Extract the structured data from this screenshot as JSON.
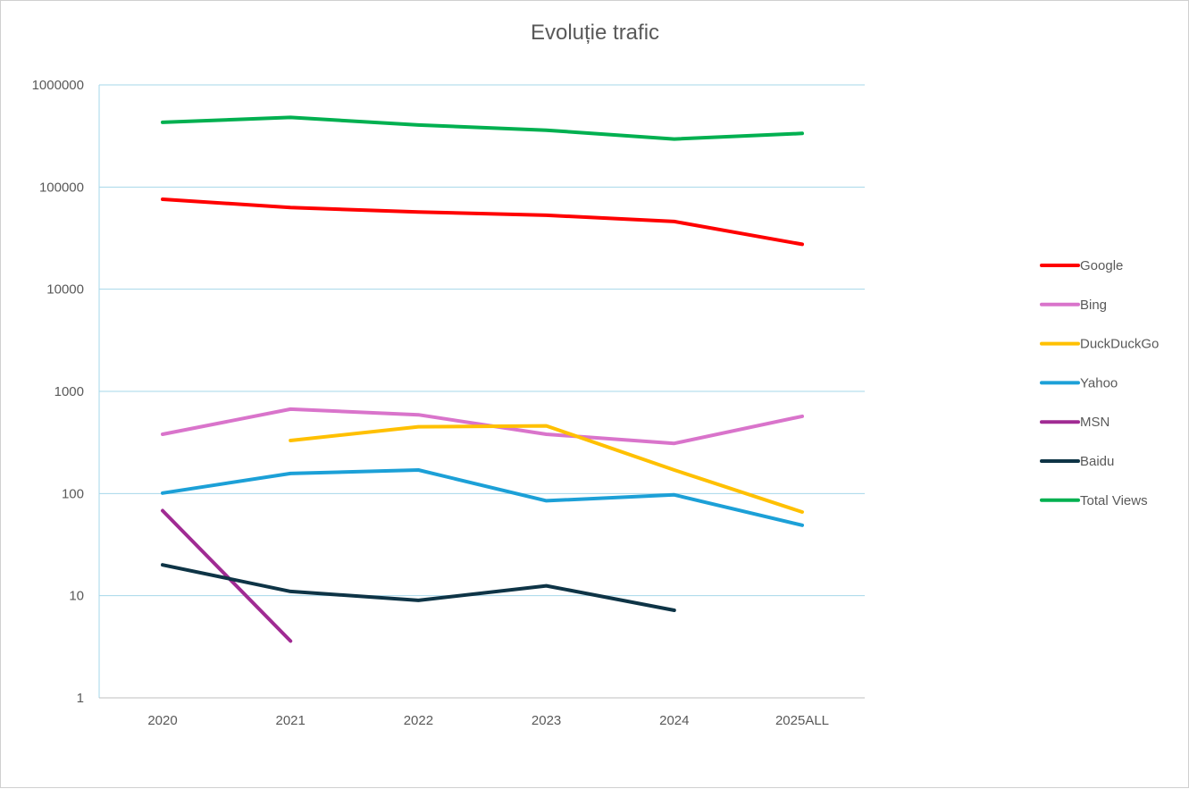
{
  "chart_data": {
    "type": "line",
    "title": "Evoluție trafic",
    "xlabel": "",
    "ylabel": "",
    "y_scale": "log",
    "ylim": [
      1,
      1000000
    ],
    "y_ticks": [
      "1",
      "10",
      "100",
      "1000",
      "10000",
      "100000",
      "1000000"
    ],
    "grid": "horizontal",
    "legend_position": "right",
    "categories": [
      "2020",
      "2021",
      "2022",
      "2023",
      "2024",
      "2025ALL"
    ],
    "series": [
      {
        "name": "Google",
        "color": "#ff0000",
        "values": [
          76000,
          63000,
          57000,
          53000,
          46000,
          27500
        ]
      },
      {
        "name": "Bing",
        "color": "#d974cb",
        "values": [
          380,
          670,
          590,
          380,
          310,
          570
        ]
      },
      {
        "name": "DuckDuckGo",
        "color": "#ffc000",
        "values": [
          null,
          330,
          450,
          460,
          170,
          66
        ]
      },
      {
        "name": "Yahoo",
        "color": "#1ca0d7",
        "values": [
          101,
          157,
          170,
          85,
          97,
          49
        ]
      },
      {
        "name": "MSN",
        "color": "#a02b93",
        "values": [
          68,
          3.6,
          null,
          null,
          null,
          null
        ]
      },
      {
        "name": "Baidu",
        "color": "#0e3446",
        "values": [
          20,
          11,
          9,
          12.5,
          7.2,
          null
        ]
      },
      {
        "name": "Total Views",
        "color": "#00b050",
        "values": [
          430000,
          480000,
          405000,
          360000,
          295000,
          335000
        ]
      }
    ]
  }
}
